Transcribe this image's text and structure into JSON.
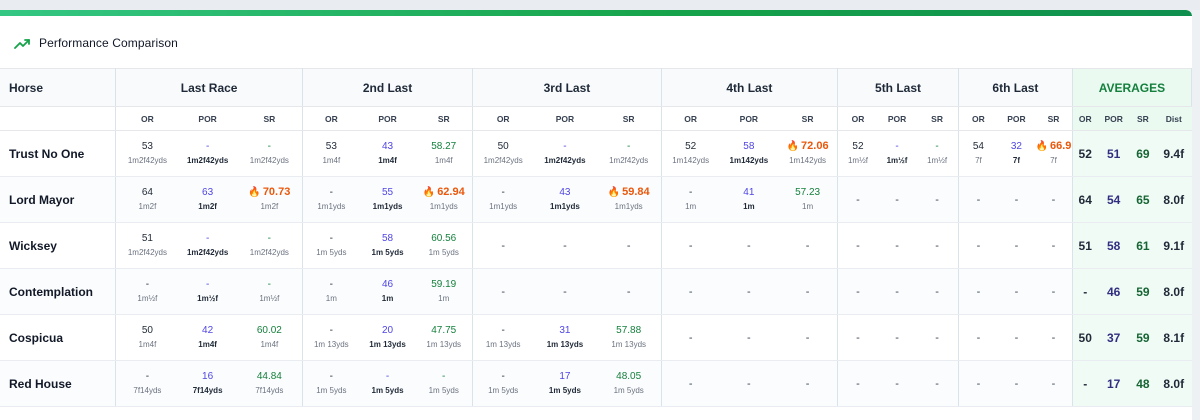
{
  "card": {
    "title": "Performance Comparison",
    "icon": "trending-up-icon"
  },
  "colors": {
    "accent": "#22c55e",
    "por": "#4f46e5",
    "sr": "#15803d",
    "hot": "#ea580c",
    "averages_bg": "#eafaf1"
  },
  "columns": {
    "horse_label": "Horse",
    "races": [
      "Last Race",
      "2nd Last",
      "3rd Last",
      "4th Last",
      "5th Last",
      "6th Last"
    ],
    "averages_label": "AVERAGES",
    "sub": {
      "or": "OR",
      "por": "POR",
      "sr": "SR",
      "dist": "Dist"
    }
  },
  "rows": [
    {
      "horse": "Trust No One",
      "races": [
        {
          "or": {
            "v": "53",
            "d": "1m2f42yds"
          },
          "por": {
            "v": "-",
            "d": "1m2f42yds"
          },
          "sr": {
            "v": "-",
            "d": "1m2f42yds"
          }
        },
        {
          "or": {
            "v": "53",
            "d": "1m4f"
          },
          "por": {
            "v": "43",
            "d": "1m4f"
          },
          "sr": {
            "v": "58.27",
            "d": "1m4f"
          }
        },
        {
          "or": {
            "v": "50",
            "d": "1m2f42yds"
          },
          "por": {
            "v": "-",
            "d": "1m2f42yds"
          },
          "sr": {
            "v": "-",
            "d": "1m2f42yds"
          }
        },
        {
          "or": {
            "v": "52",
            "d": "1m142yds"
          },
          "por": {
            "v": "58",
            "d": "1m142yds"
          },
          "sr": {
            "v": "72.06",
            "d": "1m142yds",
            "hot": true
          }
        },
        {
          "or": {
            "v": "52",
            "d": "1m½f"
          },
          "por": {
            "v": "-",
            "d": "1m½f"
          },
          "sr": {
            "v": "-",
            "d": "1m½f"
          }
        },
        {
          "or": {
            "v": "54",
            "d": "7f"
          },
          "por": {
            "v": "32",
            "d": "7f"
          },
          "sr": {
            "v": "66.9",
            "d": "7f",
            "hot": true
          }
        }
      ],
      "avg": {
        "or": "52",
        "por": "51",
        "sr": "69",
        "dist": "9.4f"
      }
    },
    {
      "horse": "Lord Mayor",
      "races": [
        {
          "or": {
            "v": "64",
            "d": "1m2f"
          },
          "por": {
            "v": "63",
            "d": "1m2f"
          },
          "sr": {
            "v": "70.73",
            "d": "1m2f",
            "hot": true
          }
        },
        {
          "or": {
            "v": "-",
            "d": "1m1yds"
          },
          "por": {
            "v": "55",
            "d": "1m1yds"
          },
          "sr": {
            "v": "62.94",
            "d": "1m1yds",
            "hot": true
          }
        },
        {
          "or": {
            "v": "-",
            "d": "1m1yds"
          },
          "por": {
            "v": "43",
            "d": "1m1yds"
          },
          "sr": {
            "v": "59.84",
            "d": "1m1yds",
            "hot": true
          }
        },
        {
          "or": {
            "v": "-",
            "d": "1m"
          },
          "por": {
            "v": "41",
            "d": "1m"
          },
          "sr": {
            "v": "57.23",
            "d": "1m"
          }
        },
        {
          "empty": true
        },
        {
          "empty": true
        }
      ],
      "avg": {
        "or": "64",
        "por": "54",
        "sr": "65",
        "dist": "8.0f"
      }
    },
    {
      "horse": "Wicksey",
      "races": [
        {
          "or": {
            "v": "51",
            "d": "1m2f42yds"
          },
          "por": {
            "v": "-",
            "d": "1m2f42yds"
          },
          "sr": {
            "v": "-",
            "d": "1m2f42yds"
          }
        },
        {
          "or": {
            "v": "-",
            "d": "1m 5yds"
          },
          "por": {
            "v": "58",
            "d": "1m 5yds"
          },
          "sr": {
            "v": "60.56",
            "d": "1m 5yds"
          }
        },
        {
          "empty": true
        },
        {
          "empty": true
        },
        {
          "empty": true
        },
        {
          "empty": true
        }
      ],
      "avg": {
        "or": "51",
        "por": "58",
        "sr": "61",
        "dist": "9.1f"
      }
    },
    {
      "horse": "Contemplation",
      "races": [
        {
          "or": {
            "v": "-",
            "d": "1m½f"
          },
          "por": {
            "v": "-",
            "d": "1m½f"
          },
          "sr": {
            "v": "-",
            "d": "1m½f"
          }
        },
        {
          "or": {
            "v": "-",
            "d": "1m"
          },
          "por": {
            "v": "46",
            "d": "1m"
          },
          "sr": {
            "v": "59.19",
            "d": "1m"
          }
        },
        {
          "empty": true
        },
        {
          "empty": true
        },
        {
          "empty": true
        },
        {
          "empty": true
        }
      ],
      "avg": {
        "or": "-",
        "por": "46",
        "sr": "59",
        "dist": "8.0f"
      }
    },
    {
      "horse": "Cospicua",
      "races": [
        {
          "or": {
            "v": "50",
            "d": "1m4f"
          },
          "por": {
            "v": "42",
            "d": "1m4f"
          },
          "sr": {
            "v": "60.02",
            "d": "1m4f"
          }
        },
        {
          "or": {
            "v": "-",
            "d": "1m 13yds"
          },
          "por": {
            "v": "20",
            "d": "1m 13yds"
          },
          "sr": {
            "v": "47.75",
            "d": "1m 13yds"
          }
        },
        {
          "or": {
            "v": "-",
            "d": "1m 13yds"
          },
          "por": {
            "v": "31",
            "d": "1m 13yds"
          },
          "sr": {
            "v": "57.88",
            "d": "1m 13yds"
          }
        },
        {
          "empty": true
        },
        {
          "empty": true
        },
        {
          "empty": true
        }
      ],
      "avg": {
        "or": "50",
        "por": "37",
        "sr": "59",
        "dist": "8.1f"
      }
    },
    {
      "horse": "Red House",
      "races": [
        {
          "or": {
            "v": "-",
            "d": "7f14yds"
          },
          "por": {
            "v": "16",
            "d": "7f14yds"
          },
          "sr": {
            "v": "44.84",
            "d": "7f14yds"
          }
        },
        {
          "or": {
            "v": "-",
            "d": "1m 5yds"
          },
          "por": {
            "v": "-",
            "d": "1m 5yds"
          },
          "sr": {
            "v": "-",
            "d": "1m 5yds"
          }
        },
        {
          "or": {
            "v": "-",
            "d": "1m 5yds"
          },
          "por": {
            "v": "17",
            "d": "1m 5yds"
          },
          "sr": {
            "v": "48.05",
            "d": "1m 5yds"
          }
        },
        {
          "empty": true
        },
        {
          "empty": true
        },
        {
          "empty": true
        }
      ],
      "avg": {
        "or": "-",
        "por": "17",
        "sr": "48",
        "dist": "8.0f"
      }
    }
  ]
}
